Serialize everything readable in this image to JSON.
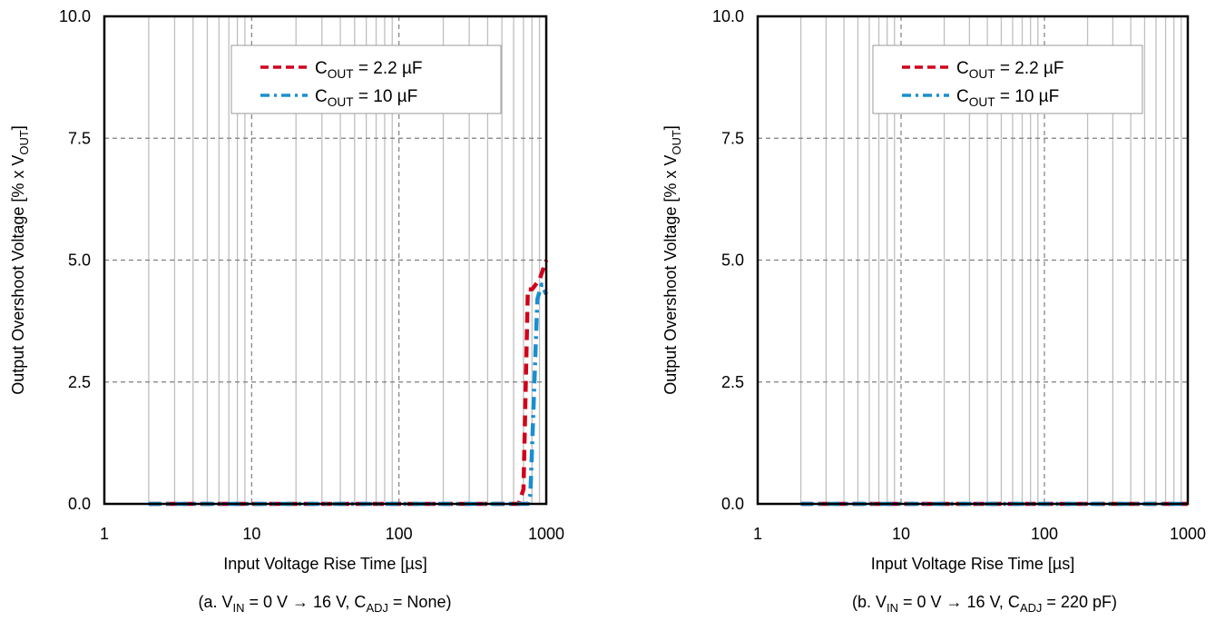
{
  "colors": {
    "cout_2_2uF": "#d0021b",
    "cout_10uF": "#1a8fd0",
    "grid": "#bfbfbf",
    "major_grid": "#7f7f7f"
  },
  "chart_data": [
    {
      "type": "line",
      "x_scale": "log",
      "xlabel": "Input Voltage Rise Time [µs]",
      "ylabel_parts": [
        "Output Overshoot Voltage [% x V",
        "OUT",
        "]"
      ],
      "xlim": [
        1,
        1000
      ],
      "ylim": [
        0,
        10
      ],
      "x_ticks": [
        "1",
        "10",
        "100",
        "1000"
      ],
      "y_ticks": [
        "0.0",
        "2.5",
        "5.0",
        "7.5",
        "10.0"
      ],
      "grid": true,
      "legend_position": "top-right",
      "legend": [
        {
          "prefix": "C",
          "sub": "OUT",
          "suffix": " =  2.2  µF"
        },
        {
          "prefix": "C",
          "sub": "OUT",
          "suffix": " = 10 µF"
        }
      ],
      "caption_parts": [
        "(a. V",
        "IN",
        " = 0 V → 16 V, C",
        "ADJ",
        " = None)"
      ],
      "series": [
        {
          "name": "COUT = 2.2 µF",
          "style": "dash",
          "x": [
            2,
            10,
            50,
            100,
            300,
            650,
            700,
            750,
            800,
            900,
            1000
          ],
          "y": [
            0,
            0,
            0,
            0,
            0,
            0,
            0.3,
            4.4,
            4.4,
            4.6,
            5.0
          ]
        },
        {
          "name": "COUT = 10 µF",
          "style": "dashdot",
          "x": [
            2,
            10,
            50,
            100,
            300,
            650,
            750,
            780,
            820,
            870,
            930,
            1000
          ],
          "y": [
            0,
            0,
            0,
            0,
            0,
            0,
            0,
            0.2,
            2.0,
            4.2,
            4.5,
            4.3
          ]
        }
      ]
    },
    {
      "type": "line",
      "x_scale": "log",
      "xlabel": "Input Voltage Rise Time [µs]",
      "ylabel_parts": [
        "Output Overshoot Voltage [% x V",
        "OUT",
        "]"
      ],
      "xlim": [
        1,
        1000
      ],
      "ylim": [
        0,
        10
      ],
      "x_ticks": [
        "1",
        "10",
        "100",
        "1000"
      ],
      "y_ticks": [
        "0.0",
        "2.5",
        "5.0",
        "7.5",
        "10.0"
      ],
      "grid": true,
      "legend_position": "top-right",
      "legend": [
        {
          "prefix": "C",
          "sub": "OUT",
          "suffix": " =  2.2  µF"
        },
        {
          "prefix": "C",
          "sub": "OUT",
          "suffix": " = 10 µF"
        }
      ],
      "caption_parts": [
        "(b. V",
        "IN",
        " = 0 V → 16 V, C",
        "ADJ",
        " = 220 pF)"
      ],
      "series": [
        {
          "name": "COUT = 2.2 µF",
          "style": "dash",
          "x": [
            2,
            10,
            100,
            1000
          ],
          "y": [
            0,
            0,
            0,
            0
          ]
        },
        {
          "name": "COUT = 10 µF",
          "style": "dashdot",
          "x": [
            2,
            10,
            100,
            1000
          ],
          "y": [
            0,
            0,
            0,
            0
          ]
        }
      ]
    }
  ]
}
